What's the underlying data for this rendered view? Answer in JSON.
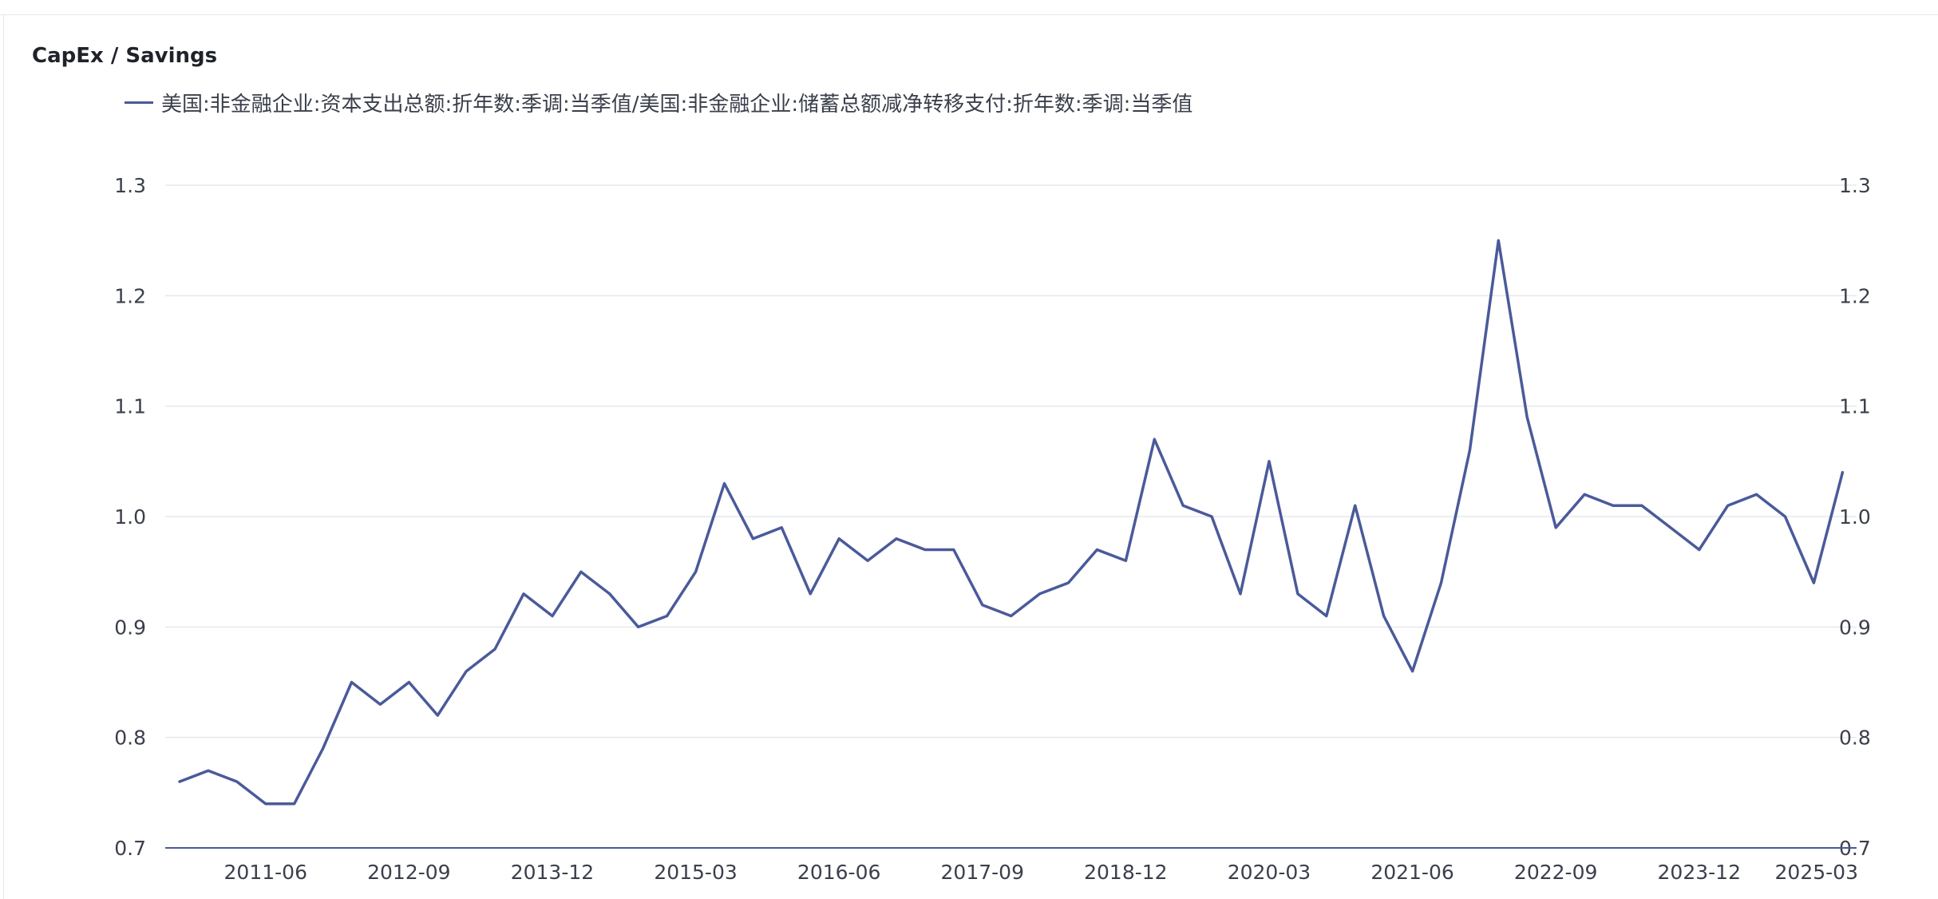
{
  "chart_data": {
    "type": "line",
    "title": "CapEx / Savings",
    "series": [
      {
        "name": "美国:非金融企业:资本支出总额:折年数:季调:当季值/美国:非金融企业:储蓄总额减净转移支付:折年数:季调:当季值",
        "color": "#4a5a9a",
        "values": [
          0.76,
          0.77,
          0.76,
          0.74,
          0.74,
          0.79,
          0.85,
          0.83,
          0.85,
          0.82,
          0.86,
          0.88,
          0.93,
          0.91,
          0.95,
          0.93,
          0.9,
          0.91,
          0.95,
          1.03,
          0.98,
          0.99,
          0.93,
          0.98,
          0.96,
          0.98,
          0.97,
          0.97,
          0.92,
          0.91,
          0.93,
          0.94,
          0.97,
          0.96,
          1.07,
          1.01,
          1.0,
          0.93,
          1.05,
          0.93,
          0.91,
          1.01,
          0.91,
          0.86,
          0.94,
          1.06,
          1.25,
          1.09,
          0.99,
          1.02,
          1.01,
          1.01,
          0.99,
          0.97,
          1.01,
          1.02,
          1.0,
          0.94,
          1.04
        ]
      }
    ],
    "x": [
      "2010-09",
      "2010-12",
      "2011-03",
      "2011-06",
      "2011-09",
      "2011-12",
      "2012-03",
      "2012-06",
      "2012-09",
      "2012-12",
      "2013-03",
      "2013-06",
      "2013-09",
      "2013-12",
      "2014-03",
      "2014-06",
      "2014-09",
      "2014-12",
      "2015-03",
      "2015-06",
      "2015-09",
      "2015-12",
      "2016-03",
      "2016-06",
      "2016-09",
      "2016-12",
      "2017-03",
      "2017-06",
      "2017-09",
      "2017-12",
      "2018-03",
      "2018-06",
      "2018-09",
      "2018-12",
      "2019-03",
      "2019-06",
      "2019-09",
      "2019-12",
      "2020-03",
      "2020-06",
      "2020-09",
      "2020-12",
      "2021-03",
      "2021-06",
      "2021-09",
      "2021-12",
      "2022-03",
      "2022-06",
      "2022-09",
      "2022-12",
      "2023-03",
      "2023-06",
      "2023-09",
      "2023-12",
      "2024-03",
      "2024-06",
      "2024-09",
      "2024-12",
      "2025-03"
    ],
    "xticks": [
      "2011-06",
      "2012-09",
      "2013-12",
      "2015-03",
      "2016-06",
      "2017-09",
      "2018-12",
      "2020-03",
      "2021-06",
      "2022-09",
      "2023-12",
      "2025-03"
    ],
    "yticks": [
      "0.7",
      "0.8",
      "0.9",
      "1.0",
      "1.1",
      "1.2",
      "1.3"
    ],
    "ylim": [
      0.7,
      1.3
    ],
    "right_axis_mirror": true,
    "grid": true,
    "legend_position": "top-left"
  }
}
